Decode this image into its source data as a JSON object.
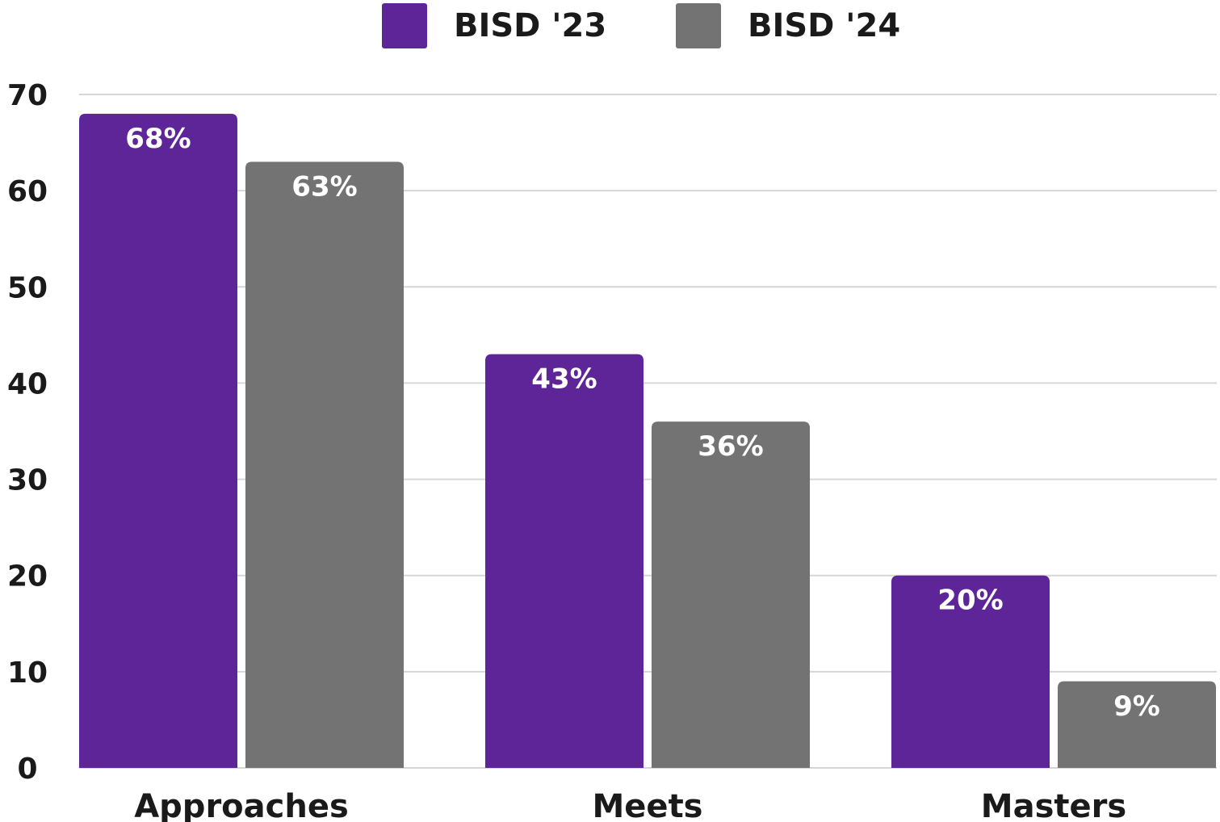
{
  "chart_data": {
    "type": "bar",
    "categories": [
      "Approaches",
      "Meets",
      "Masters"
    ],
    "series": [
      {
        "name": "BISD '23",
        "values": [
          68,
          43,
          20
        ],
        "labels": [
          "68%",
          "43%",
          "20%"
        ],
        "color": "#5e2599"
      },
      {
        "name": "BISD '24",
        "values": [
          63,
          36,
          9
        ],
        "labels": [
          "63%",
          "36%",
          "9%"
        ],
        "color": "#737373"
      }
    ],
    "yticks": [
      "0",
      "10",
      "20",
      "30",
      "40",
      "50",
      "60",
      "70"
    ],
    "ylim": [
      0,
      70
    ],
    "grid": true,
    "legend_position": "top-center"
  }
}
